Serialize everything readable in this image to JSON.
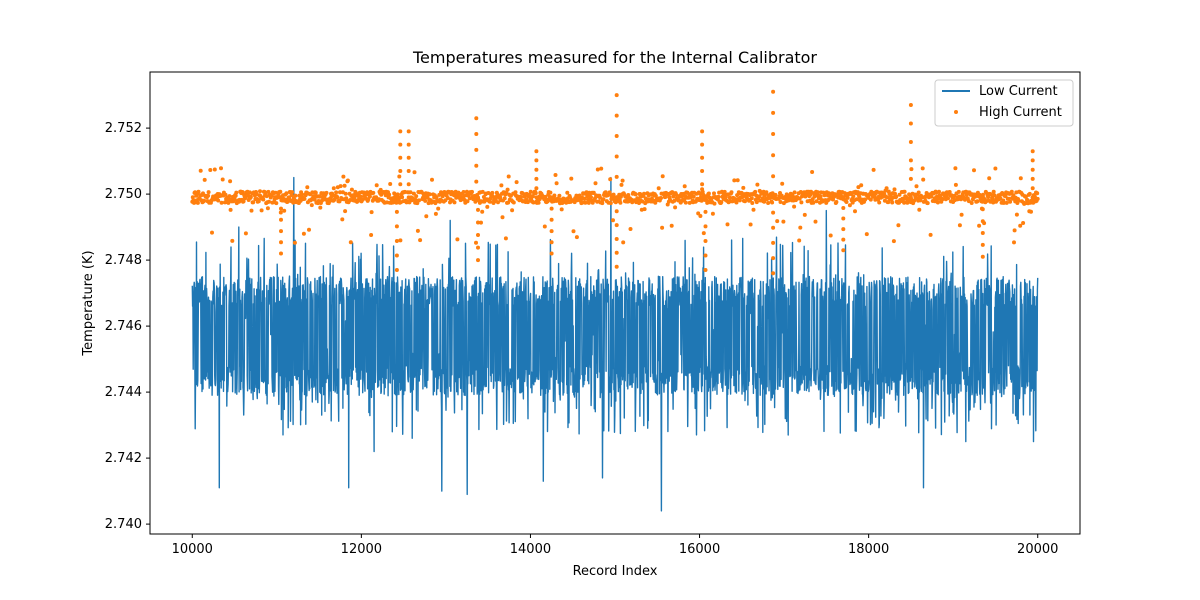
{
  "chart_data": {
    "type": "line+scatter",
    "title": "Temperatures measured for the Internal Calibrator",
    "xlabel": "Record Index",
    "ylabel": "Temperature (K)",
    "xlim": [
      9500,
      20500
    ],
    "ylim": [
      2.7397,
      2.7537
    ],
    "xticks": [
      10000,
      12000,
      14000,
      16000,
      18000,
      20000
    ],
    "xtick_labels": [
      "10000",
      "12000",
      "14000",
      "16000",
      "18000",
      "20000"
    ],
    "yticks": [
      2.74,
      2.742,
      2.744,
      2.746,
      2.748,
      2.75,
      2.752
    ],
    "ytick_labels": [
      "2.740",
      "2.742",
      "2.744",
      "2.746",
      "2.748",
      "2.750",
      "2.752"
    ],
    "grid": false,
    "legend_position": "top-right",
    "series": [
      {
        "name": "Low Current",
        "kind": "line",
        "color": "#1f77b4",
        "x_range": [
          10000,
          20000
        ],
        "band": [
          2.7439,
          2.7475
        ],
        "spikes_down": [
          [
            10320,
            2.7411
          ],
          [
            11850,
            2.7411
          ],
          [
            12950,
            2.741
          ],
          [
            13250,
            2.7409
          ],
          [
            14150,
            2.7413
          ],
          [
            14850,
            2.7414
          ],
          [
            15550,
            2.7404
          ],
          [
            18650,
            2.7411
          ],
          [
            12150,
            2.7422
          ],
          [
            12600,
            2.7426
          ],
          [
            14950,
            2.7424
          ],
          [
            17050,
            2.7427
          ],
          [
            19150,
            2.7425
          ],
          [
            19950,
            2.7425
          ]
        ],
        "spikes_up": [
          [
            11200,
            2.7505
          ],
          [
            14950,
            2.7505
          ],
          [
            13050,
            2.7492
          ],
          [
            10550,
            2.749
          ],
          [
            17500,
            2.7495
          ]
        ]
      },
      {
        "name": "High Current",
        "kind": "scatter",
        "color": "#ff7f0e",
        "x_range": [
          10000,
          20000
        ],
        "center": 2.7499,
        "outliers_up": [
          [
            15020,
            2.753
          ],
          [
            16870,
            2.7531
          ],
          [
            18500,
            2.7527
          ],
          [
            13360,
            2.7523
          ],
          [
            12460,
            2.7519
          ],
          [
            12560,
            2.7519
          ],
          [
            16030,
            2.7519
          ],
          [
            19940,
            2.7513
          ],
          [
            14070,
            2.7513
          ]
        ],
        "outliers_down": [
          [
            16870,
            2.7476
          ],
          [
            11050,
            2.7482
          ],
          [
            12420,
            2.7477
          ],
          [
            13380,
            2.748
          ],
          [
            14250,
            2.7482
          ],
          [
            15020,
            2.7478
          ],
          [
            16070,
            2.7477
          ],
          [
            17700,
            2.7483
          ],
          [
            19350,
            2.7481
          ]
        ]
      }
    ]
  }
}
